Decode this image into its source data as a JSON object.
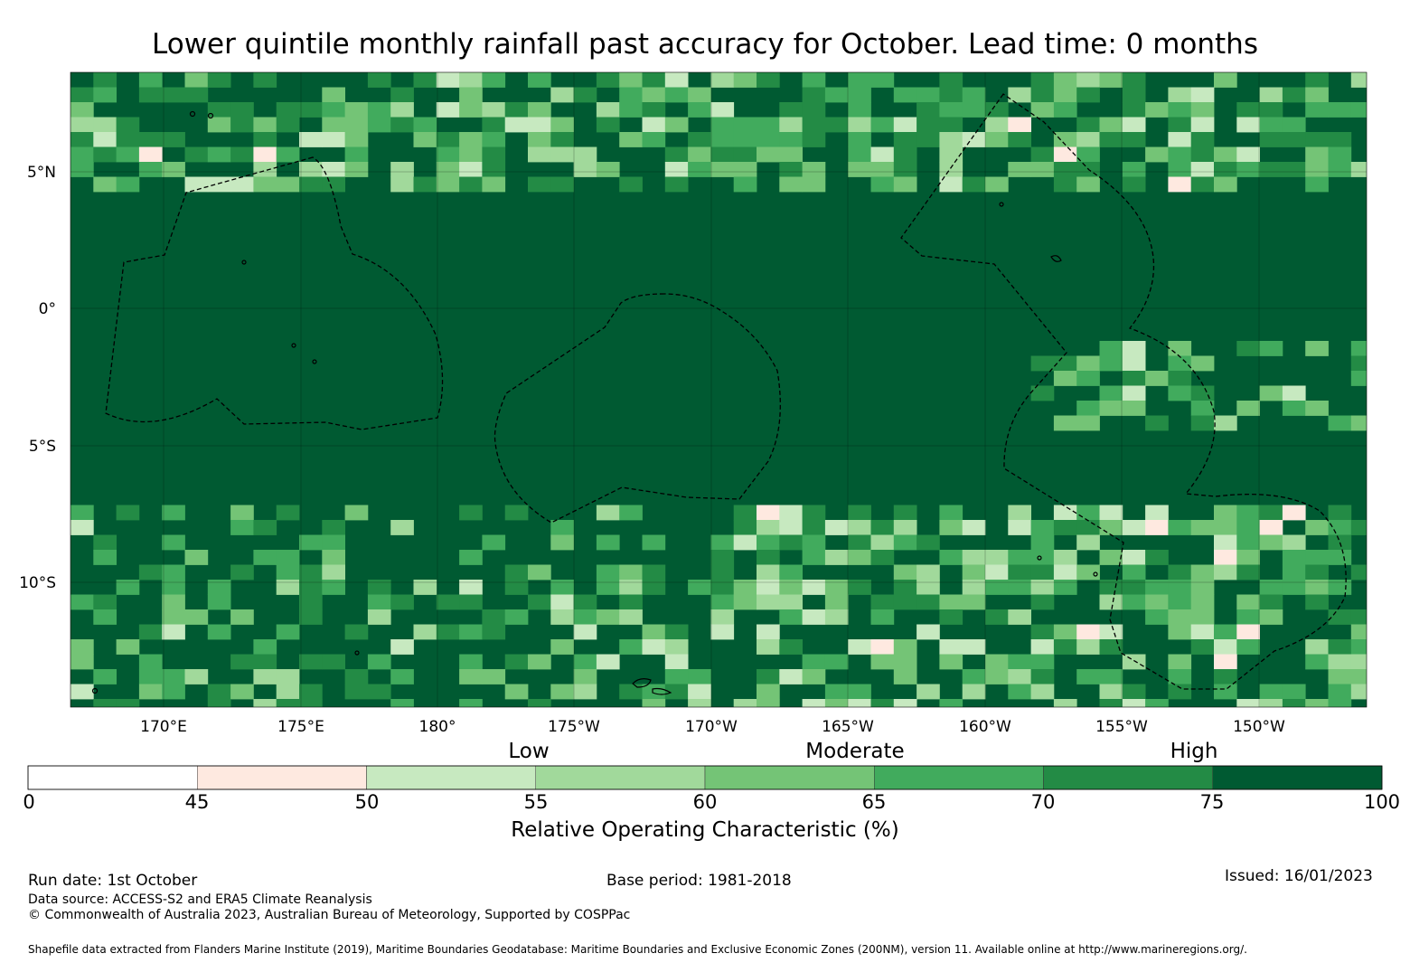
{
  "title": "Lower quintile monthly rainfall past accuracy for October. Lead time: 0 months",
  "map": {
    "base_colour": "#005a32",
    "lat_labels": [
      "5°N",
      "0°",
      "5°S",
      "10°S"
    ],
    "lon_labels": [
      "170°E",
      "175°E",
      "180°",
      "175°W",
      "170°W",
      "165°W",
      "160°W",
      "155°W",
      "150°W"
    ],
    "cell_classes": [
      {
        "name": "45-50",
        "color": "#fee9e0"
      },
      {
        "name": "50-55",
        "color": "#c7e9c0"
      },
      {
        "name": "55-60",
        "color": "#a1d99b"
      },
      {
        "name": "60-65",
        "color": "#74c476"
      },
      {
        "name": "65-70",
        "color": "#41ab5d"
      },
      {
        "name": "70-75",
        "color": "#238b45"
      }
    ]
  },
  "colorbar": {
    "category_labels": [
      "Low",
      "Moderate",
      "High"
    ],
    "tick_labels": [
      "0",
      "45",
      "50",
      "55",
      "60",
      "65",
      "70",
      "75",
      "100"
    ],
    "colors": [
      "#ffffff",
      "#fee9e0",
      "#c7e9c0",
      "#a1d99b",
      "#74c476",
      "#41ab5d",
      "#238b45",
      "#005a32"
    ],
    "title": "Relative Operating Characteristic (%)"
  },
  "footer": {
    "run_date": "Run date: 1st October",
    "base_period": "Base period: 1981-2018",
    "issued": "Issued: 16/01/2023",
    "data_source": "Data source: ACCESS-S2 and ERA5 Climate Reanalysis",
    "copyright": "© Commonwealth of Australia 2023, Australian Bureau of Meteorology, Supported by COSPPac",
    "shapefile": "Shapefile data extracted from Flanders Marine Institute (2019), Maritime Boundaries Geodatabase: Maritime Boundaries and Exclusive Economic Zones (200NM), version 11. Available online at http://www.marineregions.org/."
  }
}
